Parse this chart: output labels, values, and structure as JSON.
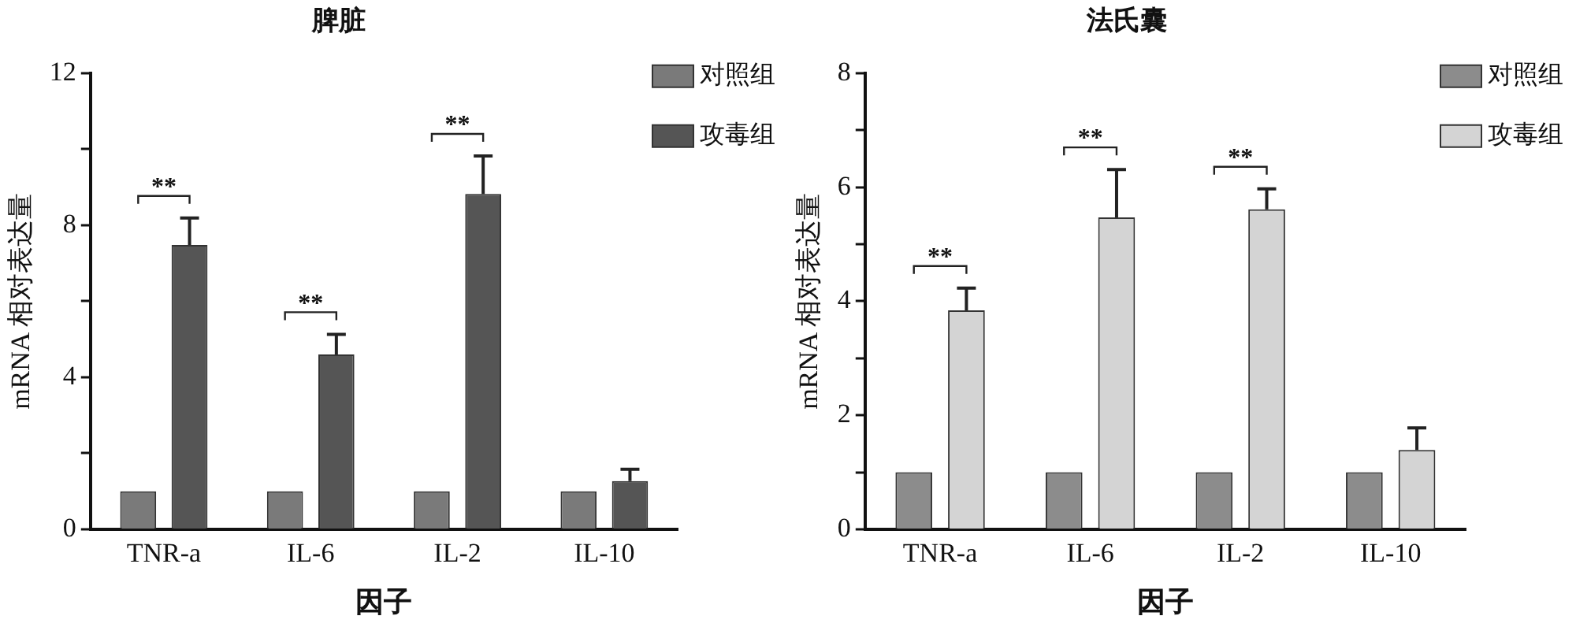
{
  "chart_data": [
    {
      "type": "bar",
      "title": "脾脏",
      "xlabel": "因子",
      "ylabel": "mRNA 相对表达量",
      "categories": [
        "TNR-a",
        "IL-6",
        "IL-2",
        "IL-10"
      ],
      "series": [
        {
          "name": "对照组",
          "color": "#7a7a7a",
          "values": [
            1,
            1,
            1,
            1
          ]
        },
        {
          "name": "攻毒组",
          "color": "#555555",
          "values": [
            7.48,
            4.6,
            8.82,
            1.27
          ],
          "errors": [
            [
              7.48,
              8.19
            ],
            [
              4.6,
              5.13
            ],
            [
              8.82,
              9.82
            ],
            [
              1.27,
              1.58
            ]
          ]
        }
      ],
      "ylim": [
        0,
        12
      ],
      "yticks": [
        0,
        {
          "value": 2,
          "label": null
        },
        4,
        {
          "value": 6,
          "label": null
        },
        8,
        {
          "value": 10,
          "label": null
        },
        12
      ],
      "grid": false,
      "legend": "top right",
      "annotations": [
        "**",
        "**",
        "**"
      ]
    },
    {
      "type": "bar",
      "title": "法氏囊",
      "xlabel": "因子",
      "ylabel": "mRNA 相对表达量",
      "categories": [
        "TNR-a",
        "IL-6",
        "IL-2",
        "IL-10"
      ],
      "series": [
        {
          "name": "对照组",
          "color": "#8c8c8c",
          "values": [
            1,
            1,
            1,
            1
          ]
        },
        {
          "name": "攻毒组",
          "color": "#d4d4d4",
          "values": [
            3.84,
            5.47,
            5.61,
            1.39
          ],
          "errors": [
            [
              3.84,
              4.23
            ],
            [
              5.47,
              6.31
            ],
            [
              5.61,
              5.97
            ],
            [
              1.39,
              1.78
            ]
          ]
        }
      ],
      "ylim": [
        0,
        8
      ],
      "yticks": [
        0,
        {
          "value": 1,
          "label": null
        },
        2,
        {
          "value": 3,
          "label": null
        },
        4,
        {
          "value": 5,
          "label": null
        },
        6,
        {
          "value": 7,
          "label": null
        },
        8
      ],
      "grid": false,
      "legend": "top right",
      "annotations": [
        "**",
        "**",
        "**"
      ]
    }
  ]
}
